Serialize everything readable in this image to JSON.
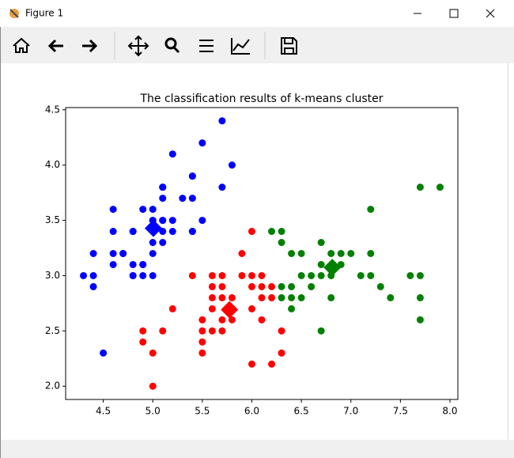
{
  "window": {
    "title": "Figure 1"
  },
  "chart_data": {
    "type": "scatter",
    "title": "The classification results of k-means cluster",
    "xlim": [
      4.12,
      8.08
    ],
    "ylim": [
      1.88,
      4.52
    ],
    "xticks": [
      4.5,
      {
        "value": 5,
        "label": "5.0"
      },
      5.5,
      {
        "value": 6,
        "label": "6.0"
      },
      6.5,
      {
        "value": 7,
        "label": "7.0"
      },
      7.5,
      {
        "value": 8,
        "label": "8.0"
      }
    ],
    "yticks": [
      {
        "value": 2,
        "label": "2.0"
      },
      2.5,
      {
        "value": 3,
        "label": "3.0"
      },
      3.5,
      {
        "value": 4,
        "label": "4.0"
      },
      4.5
    ],
    "series": [
      {
        "color": "#0000ff",
        "marker": "circle",
        "x": [
          5.1,
          4.9,
          4.7,
          4.6,
          5.0,
          5.4,
          4.6,
          5.0,
          4.4,
          4.9,
          5.4,
          4.8,
          4.8,
          4.3,
          5.8,
          5.7,
          5.4,
          5.1,
          5.7,
          5.1,
          5.4,
          5.1,
          4.6,
          5.1,
          4.8,
          5.0,
          5.0,
          5.2,
          5.2,
          4.7,
          4.8,
          5.4,
          5.2,
          5.5,
          4.9,
          5.0,
          5.5,
          4.9,
          4.4,
          5.1,
          5.0,
          4.5,
          4.4,
          5.0,
          5.1,
          4.8,
          5.1,
          4.6,
          5.3,
          5.0
        ],
        "values": [
          3.5,
          3.0,
          3.2,
          3.1,
          3.6,
          3.9,
          3.4,
          3.4,
          2.9,
          3.1,
          3.7,
          3.4,
          3.0,
          3.0,
          4.0,
          4.4,
          3.9,
          3.5,
          3.8,
          3.8,
          3.4,
          3.7,
          3.6,
          3.3,
          3.4,
          3.0,
          3.4,
          3.5,
          3.4,
          3.2,
          3.1,
          3.4,
          4.1,
          4.2,
          3.1,
          3.2,
          3.5,
          3.6,
          3.0,
          3.4,
          3.5,
          2.3,
          3.2,
          3.5,
          3.8,
          3.0,
          3.8,
          3.2,
          3.7,
          3.3
        ]
      },
      {
        "color": "#ff0000",
        "marker": "circle",
        "x": [
          4.9,
          4.9,
          5.0,
          5.0,
          5.1,
          5.2,
          5.4,
          5.5,
          5.5,
          5.5,
          5.5,
          5.6,
          5.6,
          5.6,
          5.6,
          5.6,
          5.7,
          5.7,
          5.7,
          5.7,
          5.7,
          5.8,
          5.8,
          5.8,
          5.9,
          5.9,
          6.0,
          6.0,
          6.0,
          6.0,
          6.0,
          6.1,
          6.1,
          6.1,
          6.1,
          6.2,
          6.2,
          6.2,
          6.3,
          6.3
        ],
        "values": [
          2.5,
          2.4,
          2.3,
          2.0,
          2.5,
          2.7,
          3.0,
          2.4,
          2.3,
          2.5,
          2.6,
          2.5,
          2.8,
          2.9,
          3.0,
          2.7,
          2.8,
          2.9,
          3.0,
          2.6,
          2.5,
          2.7,
          2.6,
          2.8,
          3.0,
          3.2,
          3.4,
          2.2,
          2.7,
          2.9,
          3.0,
          2.8,
          3.0,
          2.9,
          2.6,
          2.2,
          2.9,
          2.8,
          2.5,
          2.3
        ]
      },
      {
        "color": "#008000",
        "marker": "circle",
        "x": [
          6.2,
          6.3,
          6.3,
          6.4,
          6.5,
          6.3,
          6.4,
          6.4,
          6.5,
          6.4,
          6.5,
          6.6,
          6.6,
          6.7,
          6.7,
          6.7,
          6.7,
          6.8,
          6.8,
          6.8,
          6.9,
          6.9,
          7.0,
          7.1,
          7.2,
          7.2,
          7.2,
          7.3,
          7.4,
          7.6,
          7.7,
          7.7,
          7.7,
          7.7,
          7.9,
          6.3
        ],
        "values": [
          3.4,
          3.4,
          3.3,
          3.2,
          3.2,
          2.9,
          2.9,
          2.8,
          2.8,
          2.7,
          3.0,
          3.0,
          2.9,
          3.0,
          3.1,
          3.3,
          2.5,
          3.0,
          3.2,
          2.8,
          3.1,
          3.2,
          3.2,
          3.0,
          3.6,
          3.2,
          3.0,
          2.9,
          2.8,
          3.0,
          3.8,
          3.0,
          2.8,
          2.6,
          3.8,
          2.8
        ]
      },
      {
        "color": "#0000ff",
        "marker": "diamond",
        "x": [
          5.006
        ],
        "values": [
          3.428
        ]
      },
      {
        "color": "#ff0000",
        "marker": "diamond",
        "x": [
          5.774
        ],
        "values": [
          2.692
        ]
      },
      {
        "color": "#008000",
        "marker": "diamond",
        "x": [
          6.812
        ],
        "values": [
          3.074
        ]
      }
    ]
  }
}
